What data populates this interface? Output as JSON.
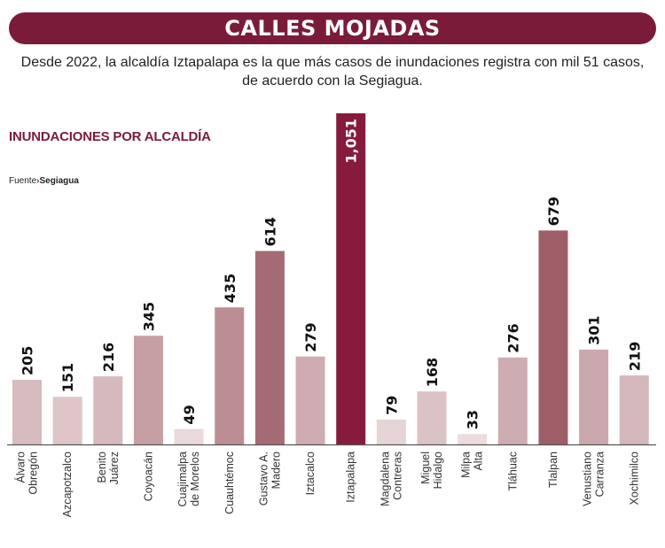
{
  "banner": "CALLES MOJADAS",
  "subtitle": "Desde 2022, la alcaldía Iztapalapa es la que más casos de inundaciones registra con mil 51 casos, de acuerdo con la Segiagua.",
  "chart_data": {
    "type": "bar",
    "title": "INUNDACIONES POR ALCALDÍA",
    "source_label": "Fuente",
    "source": "Segiagua",
    "categories": [
      "Álvaro\nObregón",
      "Azcapotzalco",
      "Benito\nJuárez",
      "Coyoacán",
      "Cuajimalpa\nde Morelos",
      "Cuauhtémoc",
      "Gustavo A.\nMadero",
      "Iztacalco",
      "Iztapalapa",
      "Magdalena\nContreras",
      "Miguel\nHidalgo",
      "Milpa\nAlta",
      "Tláhuac",
      "Tlalpan",
      "Venustiano\nCarranza",
      "Xochimilco"
    ],
    "values": [
      205,
      151,
      216,
      345,
      49,
      435,
      614,
      279,
      1051,
      79,
      168,
      33,
      276,
      679,
      301,
      219
    ],
    "data_labels": [
      "205",
      "151",
      "216",
      "345",
      "49",
      "435",
      "614",
      "279",
      "1,051",
      "79",
      "168",
      "33",
      "276",
      "679",
      "301",
      "219"
    ],
    "highlight_color": "#871b3d",
    "light_color": "#efe3e4",
    "dark_color": "#9b5a64",
    "ylim": [
      0,
      1051
    ],
    "grid": false
  }
}
